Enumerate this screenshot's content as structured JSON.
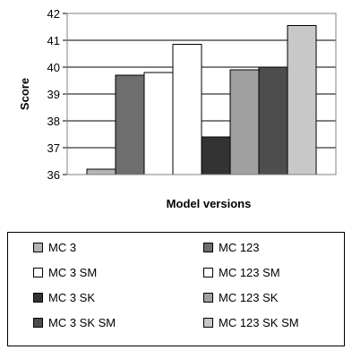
{
  "chart_data": {
    "type": "bar",
    "categories": [
      ""
    ],
    "xlabel": "Model versions",
    "ylabel": "Score",
    "ylim": [
      36,
      42
    ],
    "yticks": [
      36,
      37,
      38,
      39,
      40,
      41,
      42
    ],
    "grid": true,
    "legend_position": "bottom",
    "series": [
      {
        "name": "MC 3",
        "values": [
          36.2
        ],
        "color": "#b4b4b4"
      },
      {
        "name": "MC 123",
        "values": [
          39.7
        ],
        "color": "#6e6e6e"
      },
      {
        "name": "MC 3 SM",
        "values": [
          39.8
        ],
        "color": "#ffffff"
      },
      {
        "name": "MC 123 SM",
        "values": [
          40.85
        ],
        "color": "#ffffff"
      },
      {
        "name": "MC 3 SK",
        "values": [
          37.4
        ],
        "color": "#333333"
      },
      {
        "name": "MC 123 SK",
        "values": [
          39.9
        ],
        "color": "#a0a0a0"
      },
      {
        "name": "MC 3 SK SM",
        "values": [
          40.0
        ],
        "color": "#4d4d4d"
      },
      {
        "name": "MC 123 SK SM",
        "values": [
          41.55
        ],
        "color": "#c8c8c8"
      }
    ]
  }
}
